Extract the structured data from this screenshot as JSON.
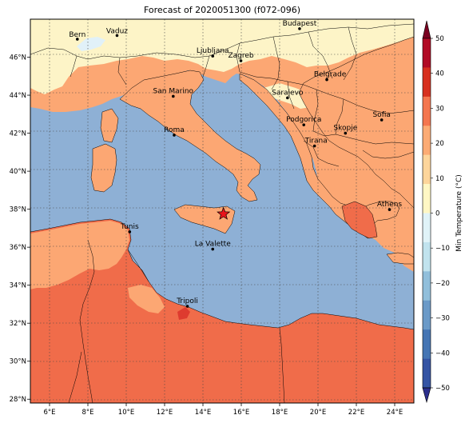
{
  "title": "Forecast of 2020051300 (f072-096)",
  "cities": [
    {
      "name": "Bern",
      "lon": 7.45,
      "lat": 46.95
    },
    {
      "name": "Vaduz",
      "lon": 9.52,
      "lat": 47.14
    },
    {
      "name": "Budapest",
      "lon": 19.04,
      "lat": 47.5
    },
    {
      "name": "Ljubljana",
      "lon": 14.51,
      "lat": 46.06
    },
    {
      "name": "Zagreb",
      "lon": 15.98,
      "lat": 45.81
    },
    {
      "name": "Belgrade",
      "lon": 20.46,
      "lat": 44.82
    },
    {
      "name": "San Marino",
      "lon": 12.45,
      "lat": 43.94
    },
    {
      "name": "Sarajevo",
      "lon": 18.41,
      "lat": 43.86
    },
    {
      "name": "Sofia",
      "lon": 23.32,
      "lat": 42.7
    },
    {
      "name": "Podgorica",
      "lon": 19.26,
      "lat": 42.44
    },
    {
      "name": "Skopje",
      "lon": 21.43,
      "lat": 42.0
    },
    {
      "name": "Roma",
      "lon": 12.5,
      "lat": 41.9
    },
    {
      "name": "Tirana",
      "lon": 19.82,
      "lat": 41.33
    },
    {
      "name": "Athens",
      "lon": 23.73,
      "lat": 37.98
    },
    {
      "name": "Tunis",
      "lon": 10.18,
      "lat": 36.81
    },
    {
      "name": "La Valette",
      "lon": 14.51,
      "lat": 35.9
    },
    {
      "name": "Tripoli",
      "lon": 13.19,
      "lat": 32.89
    }
  ],
  "marker": {
    "symbol": "star",
    "color": "#e8141b",
    "lon": 15.07,
    "lat": 37.75
  },
  "x_axis": {
    "ticks": [
      "6°E",
      "8°E",
      "10°E",
      "12°E",
      "14°E",
      "16°E",
      "18°E",
      "20°E",
      "22°E",
      "24°E"
    ],
    "range": [
      5,
      25
    ]
  },
  "y_axis": {
    "ticks": [
      "28°N",
      "30°N",
      "32°N",
      "34°N",
      "36°N",
      "38°N",
      "40°N",
      "42°N",
      "44°N",
      "46°N"
    ],
    "range": [
      27.8,
      48
    ]
  },
  "colorbar": {
    "label": "Min Temperature (°C)",
    "ticks": [
      "−50",
      "−40",
      "−30",
      "−20",
      "−10",
      "0",
      "10",
      "20",
      "30",
      "40",
      "50"
    ],
    "bands": [
      "#2b2f8d",
      "#3454a4",
      "#4575b4",
      "#6b9ac8",
      "#91bfdb",
      "#c1e3ee",
      "#e0f3f8",
      "#fff7c4",
      "#fdd59b",
      "#fcab74",
      "#f4764f",
      "#d7301f",
      "#b10c26",
      "#7a0020"
    ],
    "extend": "both"
  },
  "colors": {
    "sea": "#8eb0d5",
    "land_cool": "#fdf4c7",
    "land_warm": "#fca773",
    "land_hot": "#f06c4a",
    "land_hotter": "#de3b2f",
    "snow": "#e1f1f8",
    "border": "#000000",
    "grid": "#444444"
  }
}
